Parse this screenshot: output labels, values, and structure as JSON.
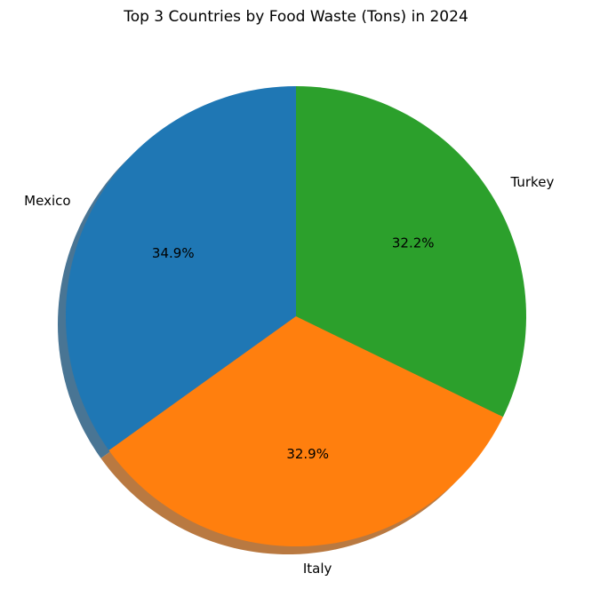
{
  "chart_data": {
    "type": "pie",
    "title": "Top 3 Countries by Food Waste (Tons) in 2024",
    "categories": [
      "Mexico",
      "Italy",
      "Turkey"
    ],
    "values": [
      34.9,
      32.9,
      32.2
    ],
    "percent_labels": [
      "34.9%",
      "32.9%",
      "32.2%"
    ],
    "colors": [
      "#1f77b4",
      "#ff7f0e",
      "#2ca02c"
    ],
    "start_angle_deg": 90,
    "direction": "counterclockwise",
    "shadow": true,
    "legend": "none"
  }
}
